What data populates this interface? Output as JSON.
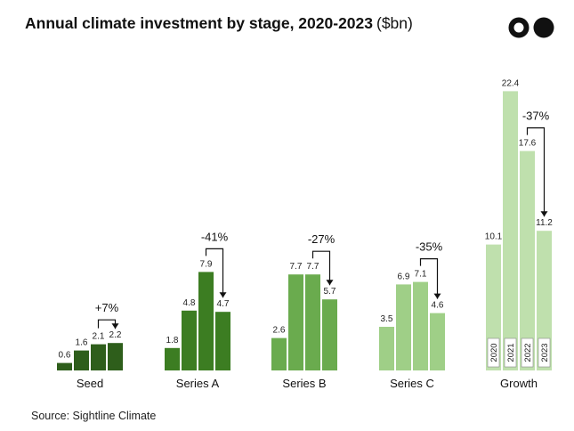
{
  "header": {
    "title": "Annual climate investment by stage, 2020-2023",
    "unit": "($bn)",
    "logo_icon": "two-circles-logo-icon"
  },
  "chart_data": {
    "type": "bar",
    "title": "Annual climate investment by stage, 2020-2023",
    "ylabel": "",
    "xlabel": "",
    "years": [
      "2020",
      "2021",
      "2022",
      "2023"
    ],
    "groups": [
      {
        "name": "Seed",
        "values": [
          0.6,
          1.6,
          2.1,
          2.2
        ],
        "labels": [
          "0.6",
          "1.6",
          "2.1",
          "2.2"
        ],
        "change": "+7%",
        "color": "#2e5e1b"
      },
      {
        "name": "Series A",
        "values": [
          1.8,
          4.8,
          7.9,
          4.7
        ],
        "labels": [
          "1.8",
          "4.8",
          "7.9",
          "4.7"
        ],
        "change": "-41%",
        "color": "#3c7d22"
      },
      {
        "name": "Series B",
        "values": [
          2.6,
          7.7,
          7.7,
          5.7
        ],
        "labels": [
          "2.6",
          "7.7",
          "7.7",
          "5.7"
        ],
        "change": "-27%",
        "color": "#6aab4e"
      },
      {
        "name": "Series C",
        "values": [
          3.5,
          6.9,
          7.1,
          4.6
        ],
        "labels": [
          "3.5",
          "6.9",
          "7.1",
          "4.6"
        ],
        "change": "-35%",
        "color": "#9fcf87"
      },
      {
        "name": "Growth",
        "values": [
          10.1,
          22.4,
          17.6,
          11.2
        ],
        "labels": [
          "10.1",
          "22.4",
          "17.6",
          "11.2"
        ],
        "change": "-37%",
        "color": "#bfe0ad"
      }
    ],
    "ylim": [
      0,
      22.4
    ],
    "grid": false,
    "legend": "none"
  },
  "footer": {
    "source": "Source: Sightline Climate"
  }
}
